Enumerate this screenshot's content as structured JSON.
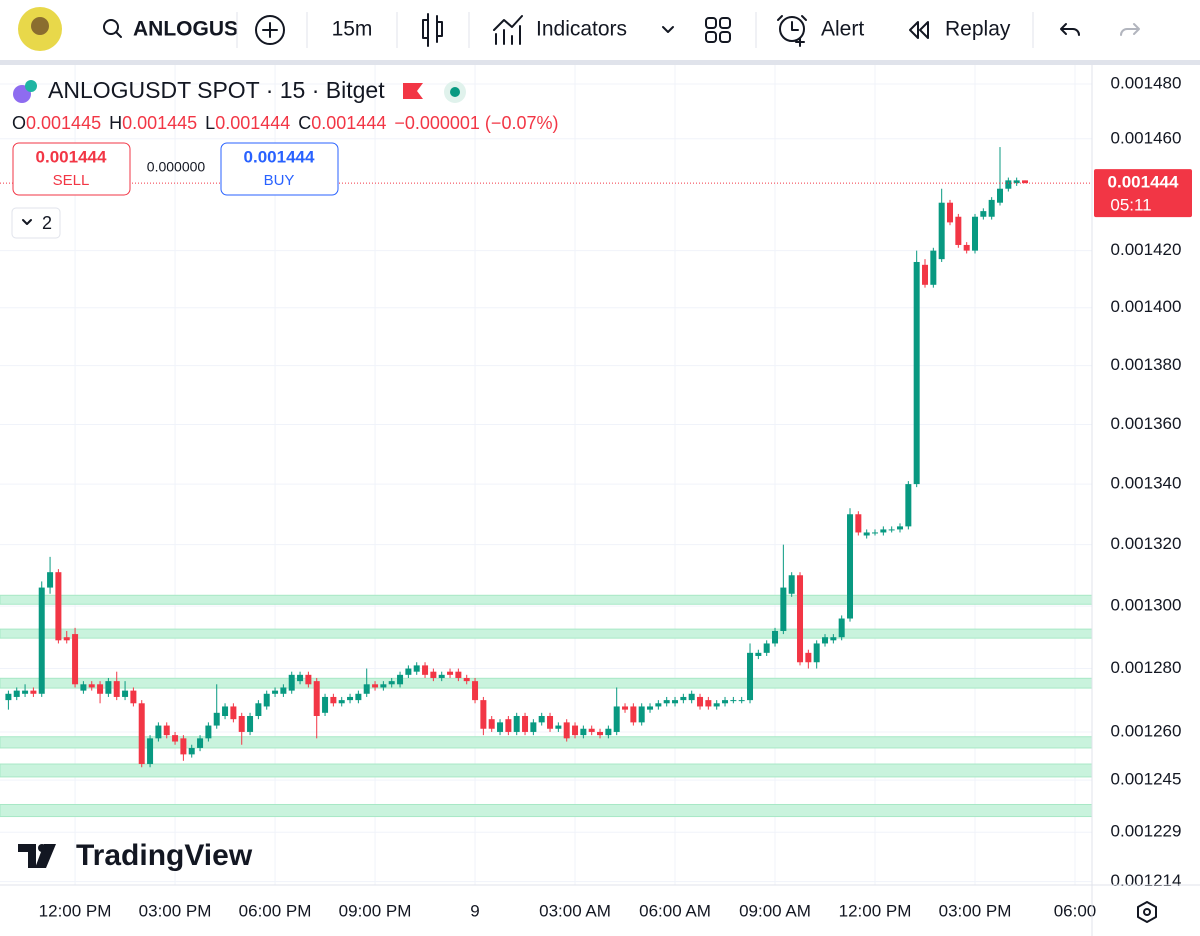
{
  "toolbar": {
    "symbol": "ANLOGUS",
    "interval": "15m",
    "indicators": "Indicators",
    "alert": "Alert",
    "replay": "Replay"
  },
  "legend": {
    "symbol": "ANLOGUSDT SPOT · 15 · Bitget",
    "ohlc": [
      {
        "key": "O",
        "value": "0.001445"
      },
      {
        "key": "H",
        "value": "0.001445"
      },
      {
        "key": "L",
        "value": "0.001444"
      },
      {
        "key": "C",
        "value": "0.001444"
      }
    ],
    "change": "−0.000001 (−0.07%)",
    "sell": {
      "price": "0.001444",
      "label": "SELL"
    },
    "spread": "0.000000",
    "buy": {
      "price": "0.001444",
      "label": "BUY"
    },
    "collapsed_count": "2"
  },
  "logo": "TradingView",
  "chart_data": {
    "type": "candlestick",
    "log_scale": true,
    "grid": true,
    "up_color": "#089981",
    "down_color": "#f23645",
    "zone_color": "#c9f3dd",
    "ylim": [
      0.001213,
      0.001487
    ],
    "yticks": [
      {
        "value": 0.00148,
        "label": "0.001480"
      },
      {
        "value": 0.00146,
        "label": "0.001460"
      },
      {
        "value": 0.00142,
        "label": "0.001420"
      },
      {
        "value": 0.0014,
        "label": "0.001400"
      },
      {
        "value": 0.00138,
        "label": "0.001380"
      },
      {
        "value": 0.00136,
        "label": "0.001360"
      },
      {
        "value": 0.00134,
        "label": "0.001340"
      },
      {
        "value": 0.00132,
        "label": "0.001320"
      },
      {
        "value": 0.0013,
        "label": "0.001300"
      },
      {
        "value": 0.00128,
        "label": "0.001280"
      },
      {
        "value": 0.00126,
        "label": "0.001260"
      },
      0.001245,
      0.001229,
      0.001214
    ],
    "categories": [
      null,
      null,
      null,
      null,
      null,
      null,
      null,
      null,
      "12:00 PM",
      null,
      null,
      null,
      null,
      null,
      null,
      null,
      null,
      null,
      null,
      null,
      "03:00 PM",
      null,
      null,
      null,
      null,
      null,
      null,
      null,
      null,
      null,
      null,
      null,
      "06:00 PM",
      null,
      null,
      null,
      null,
      null,
      null,
      null,
      null,
      null,
      null,
      null,
      "09:00 PM",
      null,
      null,
      null,
      null,
      null,
      null,
      null,
      null,
      null,
      null,
      null,
      "9",
      null,
      null,
      null,
      null,
      null,
      null,
      null,
      null,
      null,
      null,
      null,
      "03:00 AM",
      null,
      null,
      null,
      null,
      null,
      null,
      null,
      null,
      null,
      null,
      null,
      "06:00 AM",
      null,
      null,
      null,
      null,
      null,
      null,
      null,
      null,
      null,
      null,
      null,
      "09:00 AM",
      null,
      null,
      null,
      null,
      null,
      null,
      null,
      null,
      null,
      null,
      null,
      "12:00 PM",
      null,
      null,
      null,
      null,
      null,
      null,
      null,
      null,
      null,
      null,
      null,
      "03:00 PM",
      null,
      null,
      null,
      null,
      null,
      null,
      null,
      null,
      null,
      null,
      null,
      "06:00"
    ],
    "open": [
      0.00127,
      0.001271,
      0.001272,
      0.001273,
      0.001272,
      0.001306,
      0.001311,
      0.00129,
      0.001291,
      0.001273,
      0.001275,
      0.001275,
      0.001272,
      0.001276,
      0.001271,
      0.001273,
      0.001269,
      0.00125,
      0.001258,
      0.001262,
      0.001259,
      0.001258,
      0.001253,
      0.001255,
      0.001258,
      0.001262,
      0.001265,
      0.001268,
      0.001265,
      0.00126,
      0.001265,
      0.001268,
      0.001272,
      0.001272,
      0.001273,
      0.001276,
      0.001278,
      0.001276,
      0.001266,
      0.001271,
      0.001269,
      0.00127,
      0.00127,
      0.001272,
      0.001275,
      0.001274,
      0.001275,
      0.001275,
      0.001278,
      0.001279,
      0.001281,
      0.001279,
      0.001277,
      0.001279,
      0.001279,
      0.001277,
      0.001276,
      0.00127,
      0.001264,
      0.00126,
      0.001264,
      0.00126,
      0.001265,
      0.00126,
      0.001263,
      0.001265,
      0.001261,
      0.001263,
      0.001262,
      0.001259,
      0.001261,
      0.00126,
      0.001259,
      0.00126,
      0.001268,
      0.001268,
      0.001263,
      0.001267,
      0.001268,
      0.001269,
      0.001269,
      0.00127,
      0.00127,
      0.001271,
      0.00127,
      0.001268,
      0.001269,
      0.00127,
      0.00127,
      0.00127,
      0.001284,
      0.001285,
      0.001288,
      0.001292,
      0.001304,
      0.00131,
      0.001285,
      0.001282,
      0.001288,
      0.001289,
      0.00129,
      0.001296,
      0.00133,
      0.001323,
      0.001324,
      0.001324,
      0.001325,
      0.001325,
      0.001326,
      0.00134,
      0.001415,
      0.001408,
      0.001417,
      0.001437,
      0.001432,
      0.001422,
      0.00142,
      0.001432,
      0.001432,
      0.001437,
      0.001442,
      0.001444,
      0.001445,
      null,
      null,
      null,
      null,
      null,
      null
    ],
    "high": [
      0.001273,
      0.001274,
      0.001275,
      0.001274,
      0.001308,
      0.001316,
      0.001312,
      0.001292,
      0.001293,
      0.001276,
      0.001276,
      0.001276,
      0.001277,
      0.001279,
      0.001276,
      0.001274,
      0.00127,
      0.001259,
      0.001263,
      0.001263,
      0.00126,
      0.001259,
      0.001256,
      0.001259,
      0.001263,
      0.001275,
      0.001269,
      0.001269,
      0.001266,
      0.001266,
      0.00127,
      0.001273,
      0.001274,
      0.001275,
      0.001279,
      0.001279,
      0.001279,
      0.001277,
      0.001272,
      0.001272,
      0.001271,
      0.001272,
      0.001273,
      0.00128,
      0.001276,
      0.001276,
      0.001277,
      0.001279,
      0.001281,
      0.001282,
      0.001282,
      0.00128,
      0.001279,
      0.00128,
      0.00128,
      0.001278,
      0.001277,
      0.001271,
      0.001265,
      0.001264,
      0.001265,
      0.001266,
      0.001266,
      0.001264,
      0.001266,
      0.001266,
      0.001263,
      0.001264,
      0.001263,
      0.001262,
      0.001262,
      0.001261,
      0.001262,
      0.001274,
      0.001269,
      0.001269,
      0.001269,
      0.001269,
      0.00127,
      0.001271,
      0.001271,
      0.001272,
      0.001273,
      0.001272,
      0.001271,
      0.00127,
      0.001271,
      0.001271,
      0.001271,
      0.001288,
      0.001286,
      0.001289,
      0.001293,
      0.00132,
      0.001311,
      0.001311,
      0.001286,
      0.001289,
      0.001291,
      0.001291,
      0.001297,
      0.001332,
      0.001331,
      0.001325,
      0.001325,
      0.001326,
      0.001326,
      0.001327,
      0.001341,
      0.00142,
      0.001417,
      0.001421,
      0.001442,
      0.001438,
      0.001433,
      0.001423,
      0.001433,
      0.001435,
      0.001439,
      0.001457,
      0.001446,
      0.001446,
      0.001445,
      null,
      null,
      null,
      null,
      null,
      null
    ],
    "low": [
      0.001267,
      0.00127,
      0.001271,
      0.001271,
      0.001271,
      0.001304,
      0.001288,
      0.001288,
      0.001274,
      0.001272,
      0.001273,
      0.001269,
      0.001271,
      0.00127,
      0.00127,
      0.001268,
      0.001249,
      0.001249,
      0.001257,
      0.001258,
      0.001256,
      0.001251,
      0.001252,
      0.001254,
      0.001257,
      0.001261,
      0.001264,
      0.001263,
      0.001256,
      0.001259,
      0.001264,
      0.001267,
      0.001271,
      0.001271,
      0.001272,
      0.001275,
      0.001274,
      0.001258,
      0.001265,
      0.001268,
      0.001268,
      0.001269,
      0.001269,
      0.001271,
      0.001273,
      0.001273,
      0.001274,
      0.001274,
      0.001277,
      0.001278,
      0.001277,
      0.001276,
      0.001276,
      0.001277,
      0.001276,
      0.001275,
      0.001269,
      0.001259,
      0.00126,
      0.001259,
      0.001259,
      0.001259,
      0.001259,
      0.001259,
      0.001262,
      0.00126,
      0.00126,
      0.001257,
      0.001258,
      0.001258,
      0.001259,
      0.001258,
      0.001258,
      0.001259,
      0.001266,
      0.001262,
      0.001262,
      0.001266,
      0.001267,
      0.001268,
      0.001268,
      0.001269,
      0.001269,
      0.001267,
      0.001267,
      0.001267,
      0.001268,
      0.001269,
      0.001269,
      0.001269,
      0.001283,
      0.001284,
      0.001287,
      0.001291,
      0.001303,
      0.001281,
      0.00128,
      0.00128,
      0.001287,
      0.001288,
      0.001289,
      0.001295,
      0.001323,
      0.001322,
      0.001323,
      0.001323,
      0.001324,
      0.001324,
      0.001325,
      0.001339,
      0.001407,
      0.001407,
      0.001416,
      0.001429,
      0.001421,
      0.001419,
      0.001419,
      0.001431,
      0.001431,
      0.001436,
      0.001441,
      0.001443,
      0.001444,
      null,
      null,
      null,
      null,
      null,
      null
    ],
    "close": [
      0.001272,
      0.001273,
      0.001273,
      0.001272,
      0.001306,
      0.001311,
      0.001289,
      0.001289,
      0.001275,
      0.001275,
      0.001274,
      0.001272,
      0.001276,
      0.001271,
      0.001273,
      0.001269,
      0.00125,
      0.001258,
      0.001262,
      0.001259,
      0.001257,
      0.001253,
      0.001255,
      0.001258,
      0.001262,
      0.001266,
      0.001268,
      0.001264,
      0.00126,
      0.001265,
      0.001269,
      0.001272,
      0.001273,
      0.001274,
      0.001278,
      0.001278,
      0.001275,
      0.001265,
      0.001271,
      0.001269,
      0.00127,
      0.001271,
      0.001272,
      0.001275,
      0.001274,
      0.001275,
      0.001276,
      0.001278,
      0.00128,
      0.001281,
      0.001278,
      0.001277,
      0.001278,
      0.001278,
      0.001277,
      0.001276,
      0.00127,
      0.001261,
      0.001261,
      0.001263,
      0.00126,
      0.001265,
      0.00126,
      0.001263,
      0.001265,
      0.001261,
      0.001262,
      0.001258,
      0.001259,
      0.001261,
      0.00126,
      0.001259,
      0.001261,
      0.001268,
      0.001267,
      0.001263,
      0.001268,
      0.001268,
      0.001269,
      0.00127,
      0.00127,
      0.001271,
      0.001272,
      0.001268,
      0.001268,
      0.001269,
      0.00127,
      0.00127,
      0.00127,
      0.001285,
      0.001285,
      0.001288,
      0.001292,
      0.001306,
      0.00131,
      0.001282,
      0.001282,
      0.001288,
      0.00129,
      0.00129,
      0.001296,
      0.00133,
      0.001324,
      0.001324,
      0.001324,
      0.001325,
      0.001325,
      0.001326,
      0.00134,
      0.001416,
      0.001408,
      0.00142,
      0.001437,
      0.00143,
      0.001422,
      0.00142,
      0.001432,
      0.001434,
      0.001438,
      0.001442,
      0.001445,
      0.001445,
      0.001444,
      null,
      null,
      null,
      null,
      null,
      null
    ],
    "zones": [
      [
        0.0013006,
        0.0013035
      ],
      [
        0.0012897,
        0.0012926
      ],
      [
        0.0012738,
        0.0012769
      ],
      [
        0.001255,
        0.0012585
      ],
      [
        0.001246,
        0.00125
      ],
      [
        0.0012338,
        0.0012375
      ]
    ],
    "price_tag": {
      "label": "0.001444",
      "countdown": "05:11"
    }
  }
}
